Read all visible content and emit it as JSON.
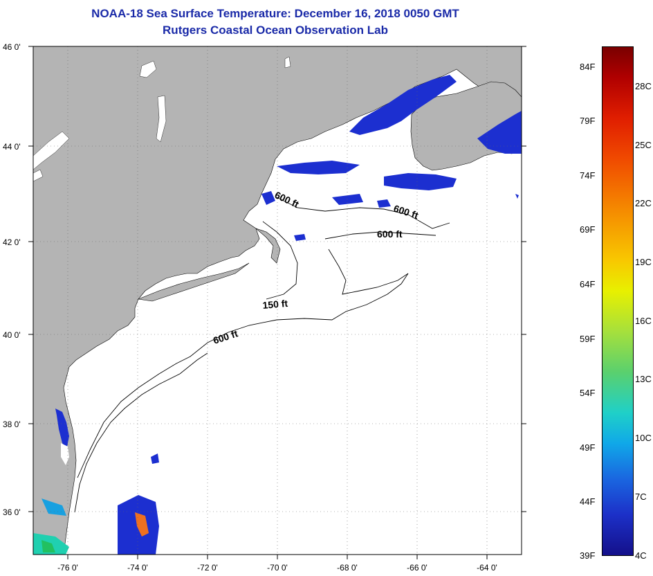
{
  "title": {
    "line1": "NOAA-18 Sea Surface Temperature:  December 16, 2018 0050 GMT",
    "line2": "Rutgers Coastal Ocean Observation Lab"
  },
  "map": {
    "lat_labels": [
      "46 0'",
      "44 0'",
      "42 0'",
      "40 0'",
      "38 0'",
      "36 0'"
    ],
    "lon_labels": [
      "-76 0'",
      "-74 0'",
      "-72 0'",
      "-70 0'",
      "-68 0'",
      "-66 0'",
      "-64 0'"
    ],
    "contour_labels": [
      "600 ft",
      "600 ft",
      "600 ft",
      "150 ft",
      "600 ft"
    ],
    "colors": {
      "land": "#b4b4b4",
      "ocean": "#ffffff",
      "cold_water": "#1c2fd0",
      "warm_patch": "#f07020"
    }
  },
  "colorbar": {
    "fahrenheit": [
      "84F",
      "79F",
      "74F",
      "69F",
      "64F",
      "59F",
      "54F",
      "49F",
      "44F",
      "39F"
    ],
    "celsius": [
      "28C",
      "25C",
      "22C",
      "19C",
      "16C",
      "13C",
      "10C",
      "7C",
      "4C"
    ]
  }
}
